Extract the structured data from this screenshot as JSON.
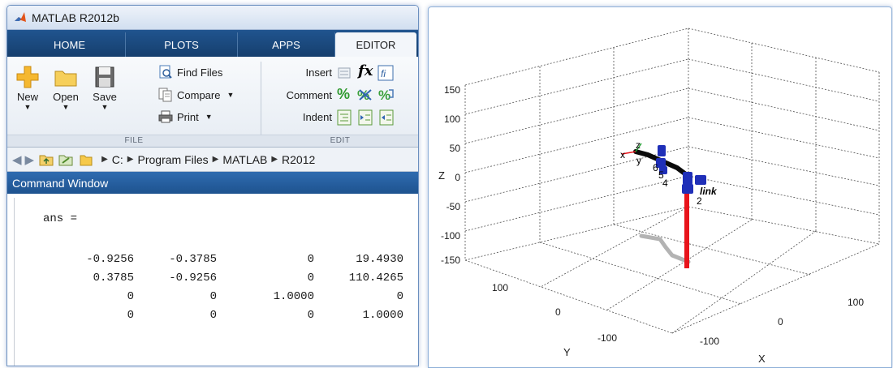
{
  "window": {
    "title": "MATLAB R2012b"
  },
  "tabs": [
    {
      "label": "HOME"
    },
    {
      "label": "PLOTS"
    },
    {
      "label": "APPS"
    },
    {
      "label": "EDITOR"
    }
  ],
  "ribbon": {
    "file_group": "FILE",
    "edit_group": "EDIT",
    "new_label": "New",
    "open_label": "Open",
    "save_label": "Save",
    "find_files": "Find Files",
    "compare": "Compare",
    "print": "Print",
    "insert": "Insert",
    "comment": "Comment",
    "indent": "Indent"
  },
  "address": {
    "crumbs": [
      "C:",
      "Program Files",
      "MATLAB",
      "R2012"
    ]
  },
  "command_window": {
    "title": "Command Window",
    "var_line": "ans =",
    "matrix": [
      [
        "-0.9256",
        "-0.3785",
        "0",
        "19.4930"
      ],
      [
        "0.3785",
        "-0.9256",
        "0",
        "110.4265"
      ],
      [
        "0",
        "0",
        "1.0000",
        "0"
      ],
      [
        "0",
        "0",
        "0",
        "1.0000"
      ]
    ]
  },
  "figure": {
    "z_ticks": [
      "150",
      "100",
      "50",
      "0",
      "-50",
      "-100",
      "-150"
    ],
    "y_ticks": [
      "100",
      "0",
      "-100"
    ],
    "x_ticks": [
      "-100",
      "0",
      "100"
    ],
    "xlabel": "X",
    "ylabel": "Y",
    "zlabel": "Z",
    "robot_labels": {
      "x": "x",
      "y": "y",
      "z": "z",
      "j6": "6",
      "j5": "5",
      "j4": "4",
      "j2": "2",
      "link": "link"
    },
    "colors": {
      "base": "#e8141b",
      "links": "#0a0a0a",
      "joints": "#1f2fb8",
      "shadow": "#b3b3b3",
      "grid": "#4d4d4d"
    }
  }
}
